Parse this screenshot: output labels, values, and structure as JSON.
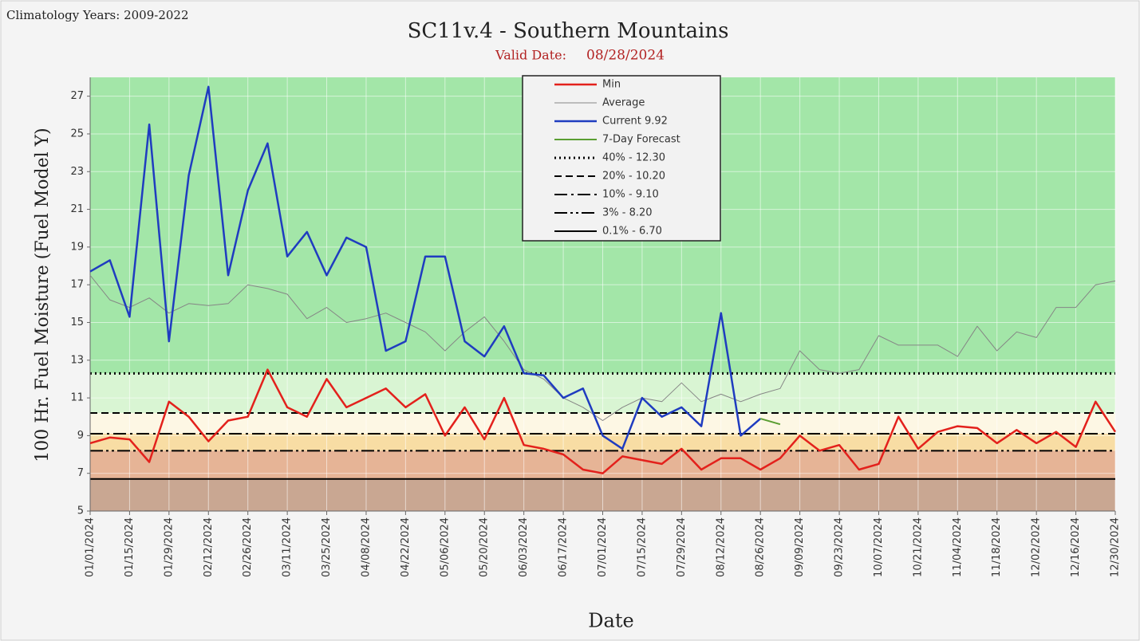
{
  "chart_data": {
    "type": "line",
    "title": "SC11v.4 - Southern Mountains",
    "subtitle_label": "Valid Date:",
    "subtitle_date": "08/28/2024",
    "corner_note": "Climatology Years: 2009-2022",
    "x_label": "Date",
    "y_label": "100 Hr. Fuel Moisture  (Fuel Model Y)",
    "x": [
      "01/01/2024",
      "01/08/2024",
      "01/15/2024",
      "01/22/2024",
      "01/29/2024",
      "02/05/2024",
      "02/12/2024",
      "02/19/2024",
      "02/26/2024",
      "03/04/2024",
      "03/11/2024",
      "03/18/2024",
      "03/25/2024",
      "04/01/2024",
      "04/08/2024",
      "04/15/2024",
      "04/22/2024",
      "04/29/2024",
      "05/06/2024",
      "05/13/2024",
      "05/20/2024",
      "05/27/2024",
      "06/03/2024",
      "06/10/2024",
      "06/17/2024",
      "06/24/2024",
      "07/01/2024",
      "07/08/2024",
      "07/15/2024",
      "07/22/2024",
      "07/29/2024",
      "08/05/2024",
      "08/12/2024",
      "08/19/2024",
      "08/26/2024",
      "09/02/2024",
      "09/09/2024",
      "09/16/2024",
      "09/23/2024",
      "09/30/2024",
      "10/07/2024",
      "10/14/2024",
      "10/21/2024",
      "10/28/2024",
      "11/04/2024",
      "11/11/2024",
      "11/18/2024",
      "11/25/2024",
      "12/02/2024",
      "12/09/2024",
      "12/16/2024",
      "12/23/2024",
      "12/30/2024"
    ],
    "series": [
      {
        "name": "Min",
        "color": "#e3211c",
        "width": 2.5,
        "values": [
          8.6,
          8.9,
          8.8,
          7.6,
          10.8,
          10.0,
          8.7,
          9.8,
          10.0,
          12.5,
          10.5,
          10.0,
          12.0,
          10.5,
          11.0,
          11.5,
          10.5,
          11.2,
          9.0,
          10.5,
          8.8,
          11.0,
          8.5,
          8.3,
          8.0,
          7.2,
          7.0,
          7.9,
          7.7,
          7.5,
          8.3,
          7.2,
          7.8,
          7.8,
          7.2,
          7.8,
          9.0,
          8.2,
          8.5,
          7.2,
          7.5,
          10.0,
          8.3,
          9.2,
          9.5,
          9.4,
          8.6,
          9.3,
          8.6,
          9.2,
          8.4,
          10.8,
          9.2
        ]
      },
      {
        "name": "Average",
        "color": "#858585",
        "width": 1,
        "values": [
          17.5,
          16.2,
          15.8,
          16.3,
          15.5,
          16.0,
          15.9,
          16.0,
          17.0,
          16.8,
          16.5,
          15.2,
          15.8,
          15.0,
          15.2,
          15.5,
          15.0,
          14.5,
          13.5,
          14.5,
          15.3,
          14.0,
          12.5,
          12.0,
          11.0,
          10.5,
          9.8,
          10.5,
          11.0,
          10.8,
          11.8,
          10.8,
          11.2,
          10.8,
          11.2,
          11.5,
          13.5,
          12.5,
          12.3,
          12.5,
          14.3,
          13.8,
          13.8,
          13.8,
          13.2,
          14.8,
          13.5,
          14.5,
          14.2,
          15.8,
          15.8,
          17.0,
          17.2
        ]
      },
      {
        "name": "Current 9.92",
        "color": "#1f3cc0",
        "width": 2.5,
        "values": [
          17.7,
          18.3,
          15.3,
          25.5,
          14.0,
          22.8,
          27.5,
          17.5,
          22.0,
          24.5,
          18.5,
          19.8,
          17.5,
          19.5,
          19.0,
          13.5,
          14.0,
          18.5,
          18.5,
          14.0,
          13.2,
          14.8,
          12.3,
          12.2,
          11.0,
          11.5,
          9.0,
          8.3,
          11.0,
          10.0,
          10.5,
          9.5,
          15.5,
          9.0,
          9.9,
          null,
          null,
          null,
          null,
          null,
          null,
          null,
          null,
          null,
          null,
          null,
          null,
          null,
          null,
          null,
          null,
          null,
          null
        ]
      },
      {
        "name": "7-Day Forecast",
        "color": "#5a9e32",
        "width": 2,
        "values": [
          null,
          null,
          null,
          null,
          null,
          null,
          null,
          null,
          null,
          null,
          null,
          null,
          null,
          null,
          null,
          null,
          null,
          null,
          null,
          null,
          null,
          null,
          null,
          null,
          null,
          null,
          null,
          null,
          null,
          null,
          null,
          null,
          null,
          null,
          9.9,
          9.6,
          null,
          null,
          null,
          null,
          null,
          null,
          null,
          null,
          null,
          null,
          null,
          null,
          null,
          null,
          null,
          null,
          null
        ]
      }
    ],
    "thresholds": [
      {
        "name": "40% -  12.30",
        "value": 12.3,
        "style": "dotted",
        "band_color": "#d9f5d3"
      },
      {
        "name": "20% -  10.20",
        "value": 10.2,
        "style": "dashed",
        "band_color": "#fdf7e4"
      },
      {
        "name": "10% -  9.10",
        "value": 9.1,
        "style": "dashdot",
        "band_color": "#f8dda4"
      },
      {
        "name": "3% -  8.20",
        "value": 8.2,
        "style": "dashdotdot",
        "band_color": "#e6b496"
      },
      {
        "name": "0.1% -  6.70",
        "value": 6.7,
        "style": "solid",
        "band_color": "#c9a792"
      }
    ],
    "background": "#a3e6a8",
    "ylim": [
      5,
      28
    ],
    "yticks": [
      5,
      7,
      9,
      11,
      13,
      15,
      17,
      19,
      21,
      23,
      25,
      27
    ],
    "xlim": [
      "01/01/2024",
      "12/30/2024"
    ],
    "xticks": [
      "01/01/2024",
      "01/15/2024",
      "01/29/2024",
      "02/12/2024",
      "02/26/2024",
      "03/11/2024",
      "03/25/2024",
      "04/08/2024",
      "04/22/2024",
      "05/06/2024",
      "05/20/2024",
      "06/03/2024",
      "06/17/2024",
      "07/01/2024",
      "07/15/2024",
      "07/29/2024",
      "08/12/2024",
      "08/26/2024",
      "09/09/2024",
      "09/23/2024",
      "10/07/2024",
      "10/21/2024",
      "11/04/2024",
      "11/18/2024",
      "12/02/2024",
      "12/16/2024",
      "12/30/2024"
    ],
    "grid": true
  }
}
